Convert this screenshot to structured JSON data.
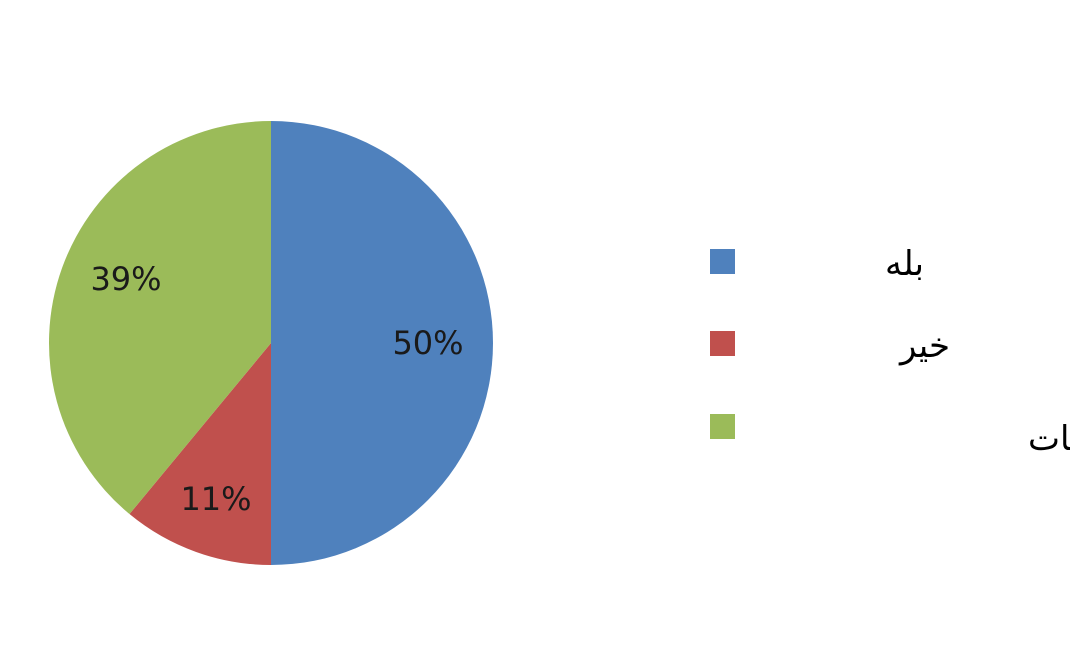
{
  "chart_data": {
    "type": "pie",
    "title": "",
    "legend_position": "right",
    "slices": [
      {
        "label": "بله",
        "value": 50,
        "display": "50%",
        "color": "#4f81bd"
      },
      {
        "label": "خیر",
        "value": 11,
        "display": "11%",
        "color": "#c0504d"
      },
      {
        "label": "گاهی اوقات",
        "value": 39,
        "display": "39%",
        "color": "#9bbb59"
      }
    ]
  }
}
